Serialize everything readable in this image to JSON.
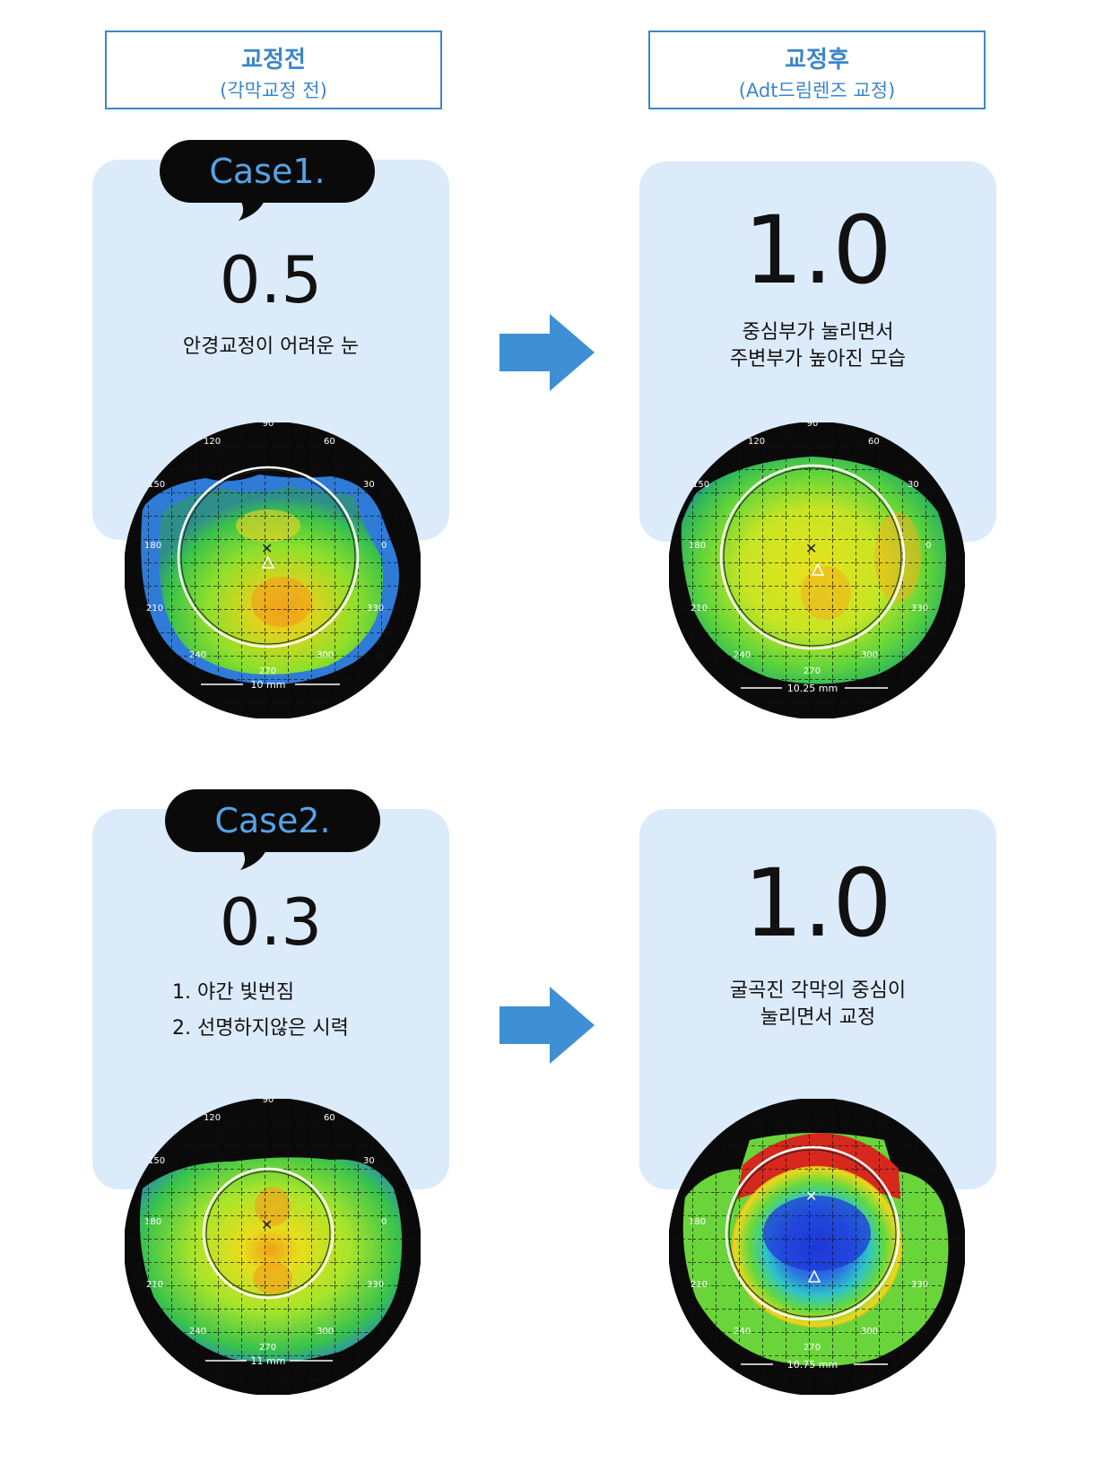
{
  "headers": {
    "before": {
      "title": "교정전",
      "subtitle": "(각막교정 전)"
    },
    "after": {
      "title": "교정후",
      "subtitle": "(Adt드림렌즈 교정)"
    }
  },
  "cases": [
    {
      "label": "Case1.",
      "before": {
        "value": "0.5",
        "lines": [
          "안경교정이 어려운 눈"
        ],
        "scale": "10 mm"
      },
      "after": {
        "value": "1.0",
        "lines": [
          "중심부가 눌리면서",
          "주변부가 높아진 모습"
        ],
        "scale": "10.25 mm"
      }
    },
    {
      "label": "Case2.",
      "before": {
        "value": "0.3",
        "lines": [
          "1. 야간 빛번짐",
          "2. 선명하지않은 시력"
        ],
        "scale": "11 mm"
      },
      "after": {
        "value": "1.0",
        "lines": [
          "굴곡진 각막의 중심이",
          "눌리면서 교정"
        ],
        "scale": "10.75 mm"
      }
    }
  ],
  "map_ticks": [
    "90",
    "120",
    "60",
    "150",
    "30",
    "180",
    "0",
    "210",
    "330",
    "240",
    "300",
    "270"
  ],
  "colors": {
    "accent": "#3c86c9",
    "card": "#dcebfa",
    "bubble_bg": "#0a0a0a",
    "bubble_text": "#55a3e6",
    "arrow": "#3f8fd4"
  }
}
